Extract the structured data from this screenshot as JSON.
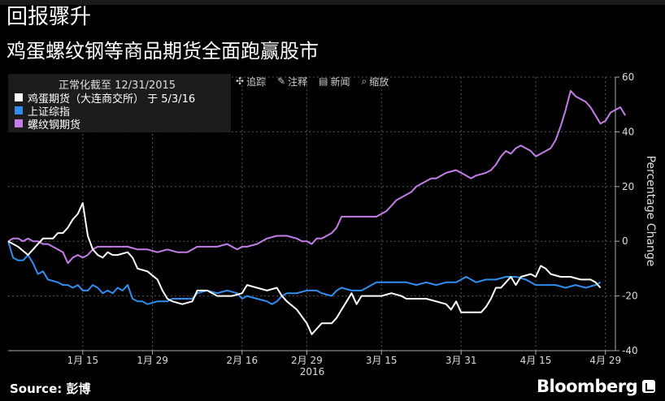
{
  "title": "回报骤升",
  "subtitle": "鸡蛋螺纹钢等商品期货全面跑赢股市",
  "legend": {
    "note": "正常化截至 12/31/2015",
    "items": [
      {
        "label": "鸡蛋期货（大连商交所） 于 5/3/16",
        "color": "#ffffff"
      },
      {
        "label": "上证综指",
        "color": "#2f8ef0"
      },
      {
        "label": "螺纹钢期货",
        "color": "#c47de8"
      }
    ]
  },
  "tools": [
    {
      "icon": "crosshair-icon",
      "label": "追踪"
    },
    {
      "icon": "pencil-icon",
      "label": "注释"
    },
    {
      "icon": "news-icon",
      "label": "新闻"
    },
    {
      "icon": "zoom-icon",
      "label": "缩放"
    }
  ],
  "source": "Source: 彭博",
  "brand": "Bloomberg",
  "chart_data": {
    "type": "line",
    "ylabel": "Percentage Change",
    "ylim": [
      -40,
      60
    ],
    "yticks": [
      -40,
      -20,
      0,
      20,
      40,
      60
    ],
    "xlim": [
      0,
      122
    ],
    "xticks": [
      {
        "day": 15,
        "label": "1月 15"
      },
      {
        "day": 29,
        "label": "1月 29"
      },
      {
        "day": 47,
        "label": "2月 16"
      },
      {
        "day": 60,
        "label": "2月 29"
      },
      {
        "day": 75,
        "label": "3月 15"
      },
      {
        "day": 91,
        "label": "3月 31"
      },
      {
        "day": 106,
        "label": "4月 15"
      },
      {
        "day": 120,
        "label": "4月 29"
      }
    ],
    "xyear": "2016",
    "series": [
      {
        "name": "鸡蛋期货（大连商交所） 于 5/3/16",
        "color": "#ffffff",
        "points": [
          [
            0,
            0
          ],
          [
            2,
            -2
          ],
          [
            4,
            -5
          ],
          [
            6,
            -1
          ],
          [
            7,
            1
          ],
          [
            9,
            1
          ],
          [
            10,
            3
          ],
          [
            11,
            3
          ],
          [
            12,
            5
          ],
          [
            13,
            8
          ],
          [
            14,
            10
          ],
          [
            15,
            14
          ],
          [
            16,
            2
          ],
          [
            17,
            -3
          ],
          [
            18,
            -5
          ],
          [
            19,
            -6
          ],
          [
            20,
            -4
          ],
          [
            21,
            -5
          ],
          [
            22,
            -5
          ],
          [
            24,
            -4
          ],
          [
            25,
            -6
          ],
          [
            26,
            -10
          ],
          [
            28,
            -11
          ],
          [
            30,
            -14
          ],
          [
            31,
            -18
          ],
          [
            32,
            -21
          ],
          [
            33,
            -22
          ],
          [
            35,
            -23
          ],
          [
            37,
            -22
          ],
          [
            38,
            -18
          ],
          [
            40,
            -18
          ],
          [
            42,
            -20
          ],
          [
            45,
            -20
          ],
          [
            47,
            -19
          ],
          [
            48,
            -16
          ],
          [
            50,
            -17
          ],
          [
            52,
            -18
          ],
          [
            54,
            -17
          ],
          [
            55,
            -20
          ],
          [
            56,
            -22
          ],
          [
            58,
            -25
          ],
          [
            60,
            -30
          ],
          [
            61,
            -34
          ],
          [
            62,
            -32
          ],
          [
            63,
            -30
          ],
          [
            65,
            -30
          ],
          [
            66,
            -28
          ],
          [
            67,
            -25
          ],
          [
            68,
            -22
          ],
          [
            69,
            -19
          ],
          [
            70,
            -23
          ],
          [
            71,
            -20
          ],
          [
            73,
            -20
          ],
          [
            75,
            -20
          ],
          [
            77,
            -19
          ],
          [
            79,
            -20
          ],
          [
            80,
            -21
          ],
          [
            82,
            -21
          ],
          [
            84,
            -21
          ],
          [
            86,
            -22
          ],
          [
            88,
            -23
          ],
          [
            89,
            -25
          ],
          [
            90,
            -22
          ],
          [
            91,
            -26
          ],
          [
            93,
            -26
          ],
          [
            95,
            -26
          ],
          [
            96,
            -24
          ],
          [
            97,
            -21
          ],
          [
            98,
            -17
          ],
          [
            99,
            -17
          ],
          [
            100,
            -15
          ],
          [
            101,
            -13
          ],
          [
            102,
            -16
          ],
          [
            103,
            -13
          ],
          [
            105,
            -12
          ],
          [
            106,
            -13
          ],
          [
            107,
            -9
          ],
          [
            108,
            -10
          ],
          [
            109,
            -12
          ],
          [
            111,
            -13
          ],
          [
            113,
            -13
          ],
          [
            115,
            -14
          ],
          [
            117,
            -14
          ],
          [
            118,
            -15
          ],
          [
            119,
            -17
          ]
        ]
      },
      {
        "name": "上证综指",
        "color": "#2f8ef0",
        "points": [
          [
            0,
            0
          ],
          [
            1,
            -6
          ],
          [
            2,
            -7
          ],
          [
            3,
            -7
          ],
          [
            4,
            -5
          ],
          [
            5,
            -8
          ],
          [
            6,
            -12
          ],
          [
            7,
            -11
          ],
          [
            8,
            -14
          ],
          [
            10,
            -15
          ],
          [
            11,
            -16
          ],
          [
            12,
            -16
          ],
          [
            13,
            -17
          ],
          [
            14,
            -16
          ],
          [
            15,
            -18
          ],
          [
            16,
            -18
          ],
          [
            17,
            -16
          ],
          [
            18,
            -17
          ],
          [
            19,
            -19
          ],
          [
            20,
            -18
          ],
          [
            21,
            -19
          ],
          [
            22,
            -17
          ],
          [
            23,
            -18
          ],
          [
            24,
            -16
          ],
          [
            25,
            -21
          ],
          [
            26,
            -22
          ],
          [
            27,
            -22
          ],
          [
            28,
            -23
          ],
          [
            30,
            -22
          ],
          [
            32,
            -22
          ],
          [
            33,
            -21
          ],
          [
            35,
            -21
          ],
          [
            37,
            -21
          ],
          [
            38,
            -19
          ],
          [
            40,
            -18
          ],
          [
            42,
            -19
          ],
          [
            44,
            -18
          ],
          [
            46,
            -19
          ],
          [
            47,
            -21
          ],
          [
            48,
            -20
          ],
          [
            50,
            -21
          ],
          [
            52,
            -22
          ],
          [
            53,
            -23
          ],
          [
            54,
            -22
          ],
          [
            55,
            -20
          ],
          [
            56,
            -19
          ],
          [
            58,
            -19
          ],
          [
            60,
            -18
          ],
          [
            62,
            -18
          ],
          [
            63,
            -19
          ],
          [
            65,
            -20
          ],
          [
            66,
            -18
          ],
          [
            67,
            -17
          ],
          [
            69,
            -18
          ],
          [
            71,
            -18
          ],
          [
            72,
            -17
          ],
          [
            73,
            -16
          ],
          [
            74,
            -15
          ],
          [
            76,
            -15
          ],
          [
            78,
            -15
          ],
          [
            80,
            -15
          ],
          [
            82,
            -16
          ],
          [
            84,
            -15
          ],
          [
            86,
            -16
          ],
          [
            88,
            -15
          ],
          [
            90,
            -15
          ],
          [
            91,
            -14
          ],
          [
            92,
            -13
          ],
          [
            93,
            -14
          ],
          [
            94,
            -15
          ],
          [
            96,
            -14
          ],
          [
            98,
            -14
          ],
          [
            100,
            -13
          ],
          [
            102,
            -13
          ],
          [
            104,
            -14
          ],
          [
            106,
            -16
          ],
          [
            108,
            -16
          ],
          [
            110,
            -16
          ],
          [
            112,
            -17
          ],
          [
            114,
            -16
          ],
          [
            116,
            -17
          ],
          [
            118,
            -16
          ],
          [
            119,
            -15
          ]
        ]
      },
      {
        "name": "螺纹钢期货",
        "color": "#c47de8",
        "points": [
          [
            0,
            0
          ],
          [
            1,
            1
          ],
          [
            2,
            1
          ],
          [
            3,
            0
          ],
          [
            4,
            1
          ],
          [
            5,
            0
          ],
          [
            6,
            0
          ],
          [
            7,
            -1
          ],
          [
            8,
            -1
          ],
          [
            10,
            -3
          ],
          [
            11,
            -4
          ],
          [
            12,
            -8
          ],
          [
            13,
            -6
          ],
          [
            14,
            -5
          ],
          [
            15,
            -6
          ],
          [
            16,
            -5
          ],
          [
            17,
            -3
          ],
          [
            18,
            -2
          ],
          [
            20,
            -2
          ],
          [
            22,
            -2
          ],
          [
            24,
            -2
          ],
          [
            26,
            -3
          ],
          [
            28,
            -3
          ],
          [
            30,
            -4
          ],
          [
            32,
            -3
          ],
          [
            34,
            -4
          ],
          [
            36,
            -4
          ],
          [
            38,
            -2
          ],
          [
            40,
            -2
          ],
          [
            42,
            -2
          ],
          [
            44,
            -1
          ],
          [
            46,
            -3
          ],
          [
            47,
            -2
          ],
          [
            48,
            -2
          ],
          [
            50,
            -1
          ],
          [
            52,
            1
          ],
          [
            54,
            2
          ],
          [
            56,
            2
          ],
          [
            58,
            1
          ],
          [
            59,
            0
          ],
          [
            60,
            0
          ],
          [
            61,
            -1
          ],
          [
            62,
            1
          ],
          [
            63,
            1
          ],
          [
            64,
            2
          ],
          [
            65,
            3
          ],
          [
            66,
            5
          ],
          [
            67,
            9
          ],
          [
            68,
            9
          ],
          [
            70,
            9
          ],
          [
            72,
            9
          ],
          [
            74,
            9
          ],
          [
            75,
            10
          ],
          [
            76,
            11
          ],
          [
            77,
            13
          ],
          [
            78,
            15
          ],
          [
            79,
            16
          ],
          [
            80,
            17
          ],
          [
            81,
            18
          ],
          [
            82,
            20
          ],
          [
            83,
            21
          ],
          [
            84,
            22
          ],
          [
            85,
            23
          ],
          [
            86,
            23
          ],
          [
            88,
            25
          ],
          [
            90,
            26
          ],
          [
            91,
            25
          ],
          [
            92,
            24
          ],
          [
            93,
            23
          ],
          [
            94,
            24
          ],
          [
            96,
            25
          ],
          [
            97,
            26
          ],
          [
            98,
            28
          ],
          [
            99,
            31
          ],
          [
            100,
            33
          ],
          [
            101,
            32
          ],
          [
            102,
            34
          ],
          [
            103,
            35
          ],
          [
            104,
            34
          ],
          [
            105,
            33
          ],
          [
            106,
            31
          ],
          [
            107,
            32
          ],
          [
            108,
            33
          ],
          [
            109,
            34
          ],
          [
            110,
            37
          ],
          [
            111,
            42
          ],
          [
            112,
            48
          ],
          [
            113,
            55
          ],
          [
            114,
            53
          ],
          [
            115,
            52
          ],
          [
            116,
            51
          ],
          [
            117,
            49
          ],
          [
            118,
            46
          ],
          [
            119,
            43
          ],
          [
            120,
            44
          ],
          [
            121,
            47
          ],
          [
            122,
            48
          ],
          [
            123,
            49
          ],
          [
            124,
            46
          ]
        ]
      }
    ]
  }
}
